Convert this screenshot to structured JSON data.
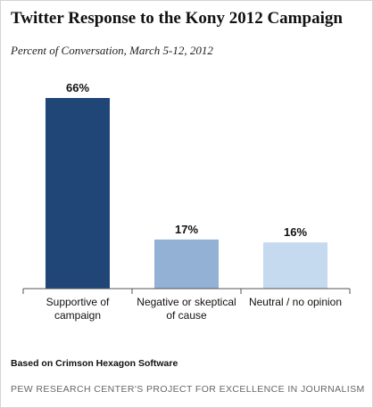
{
  "chart_data": {
    "type": "bar",
    "title": "Twitter Response to the Kony 2012 Campaign",
    "subtitle": "Percent of Conversation, March 5-12, 2012",
    "categories": [
      [
        "Supportive of",
        "campaign"
      ],
      [
        "Negative or skeptical",
        "of cause"
      ],
      [
        "Neutral / no opinion"
      ]
    ],
    "values": [
      66,
      17,
      16
    ],
    "data_labels": [
      "66%",
      "17%",
      "16%"
    ],
    "colors": [
      "#1f4677",
      "#93b0d5",
      "#c5d9ef"
    ],
    "ylim": [
      0,
      66
    ],
    "grid": false,
    "legend": "none"
  },
  "footer": {
    "source": "Based on Crimson Hexagon Software",
    "credit": "PEW RESEARCH CENTER'S PROJECT FOR EXCELLENCE IN JOURNALISM"
  }
}
